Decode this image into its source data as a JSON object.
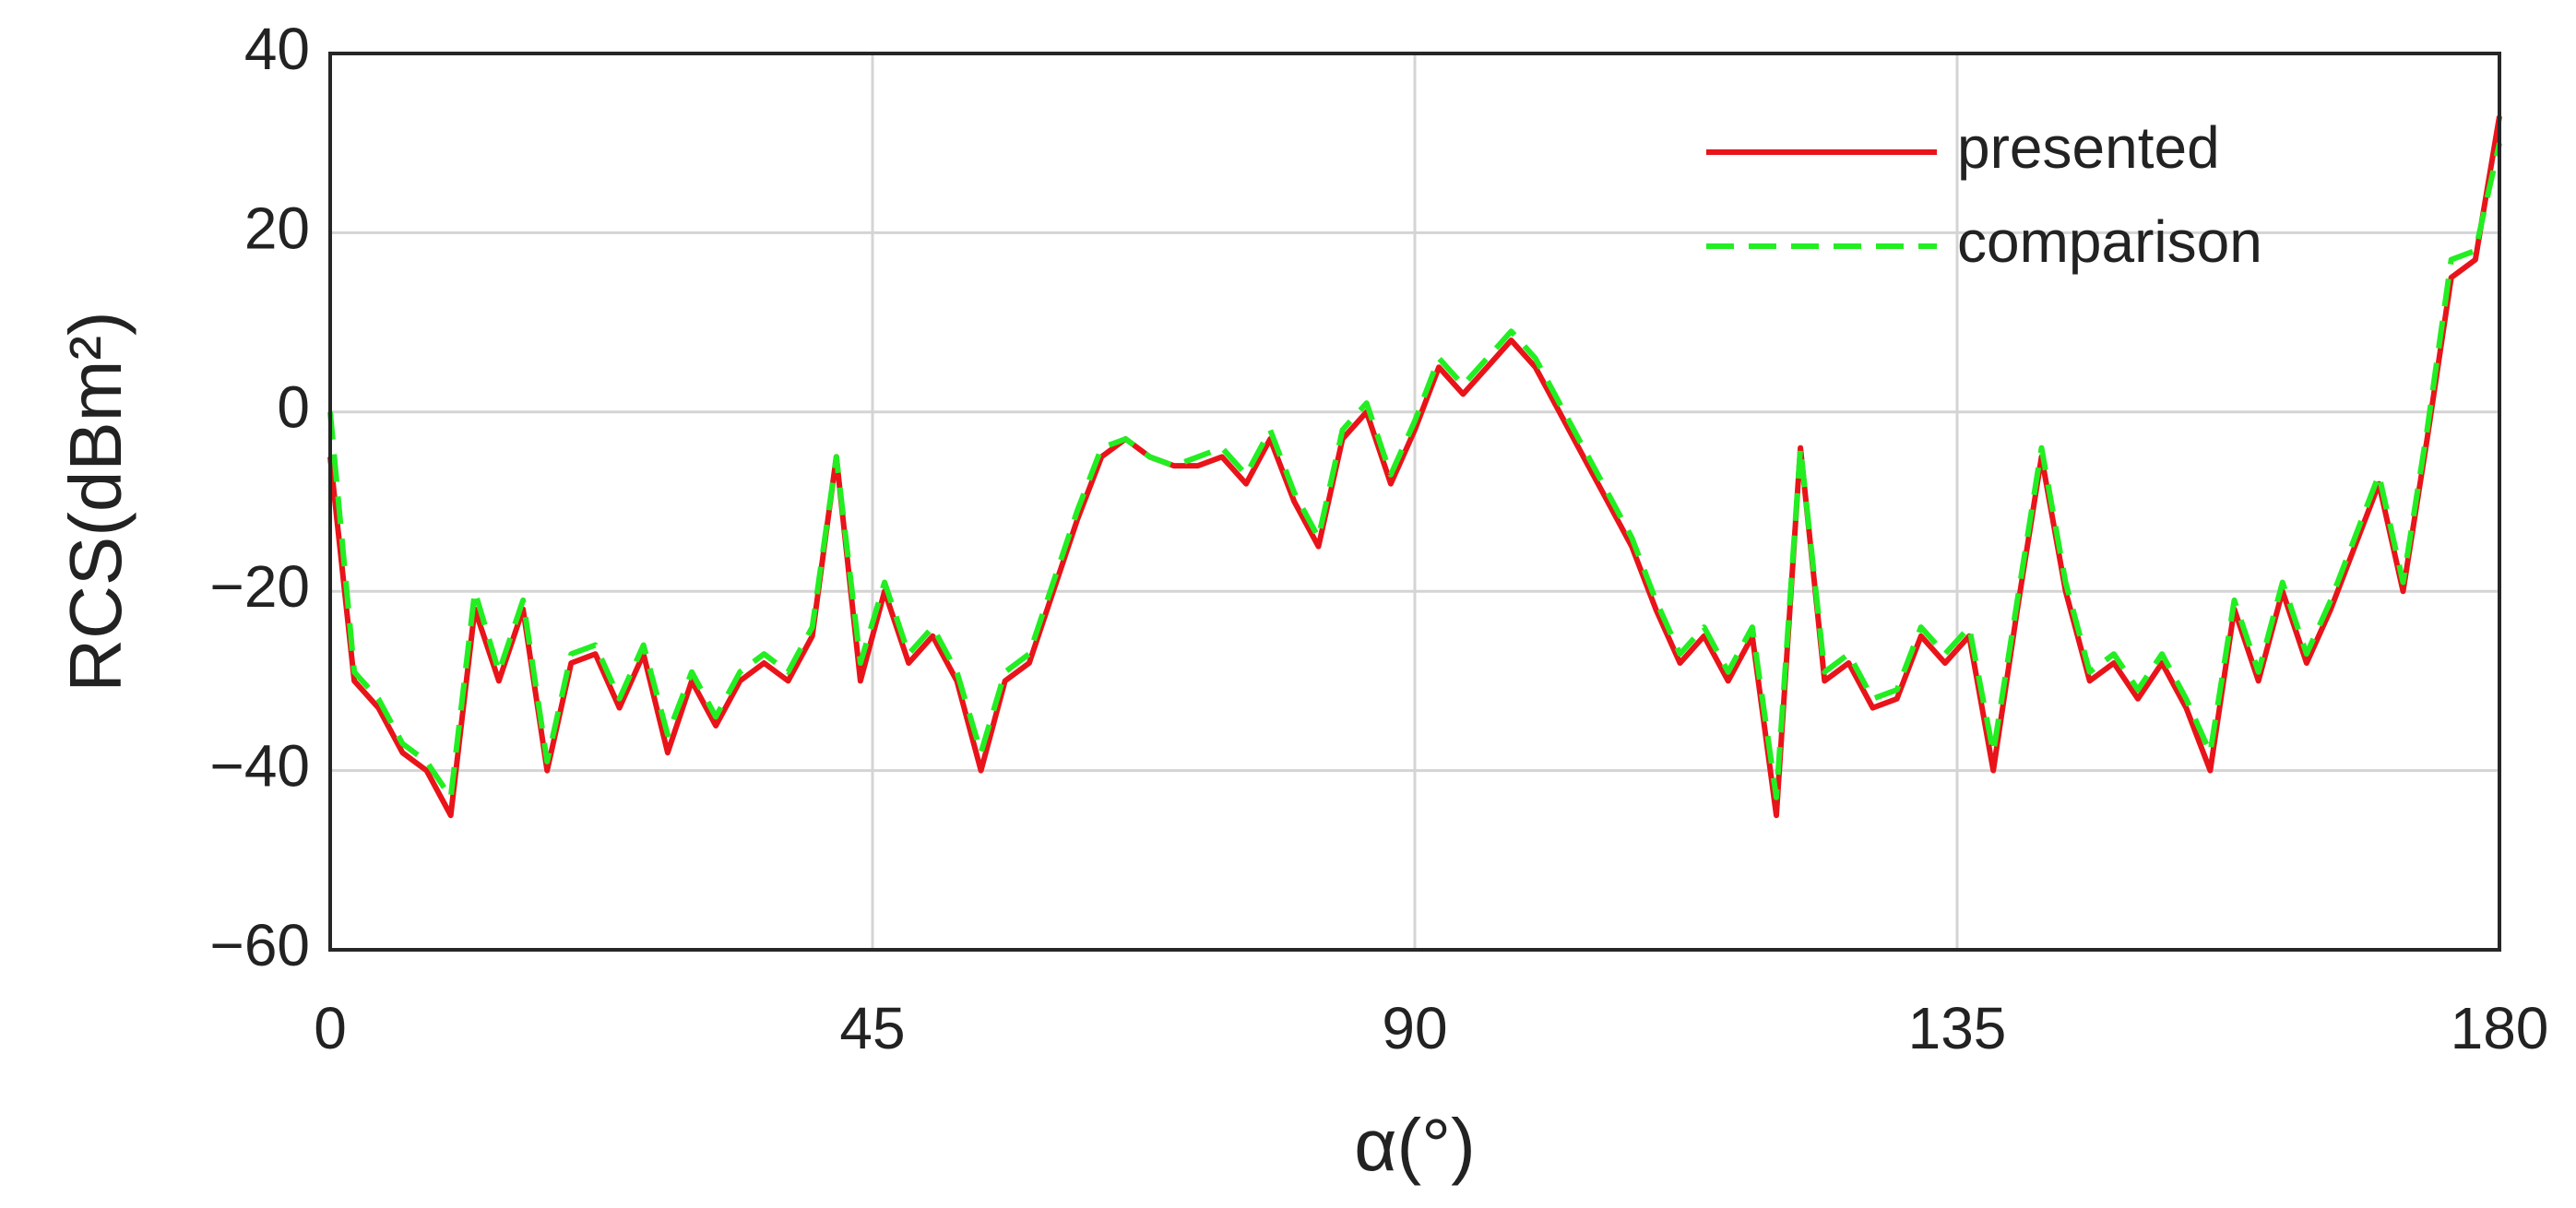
{
  "chart_data": {
    "type": "line",
    "xlabel": "α(°)",
    "ylabel": "RCS(dBm²)",
    "xlim": [
      0,
      180
    ],
    "ylim": [
      -60,
      40
    ],
    "xticks": [
      0,
      45,
      90,
      135,
      180
    ],
    "yticks": [
      {
        "value": -60,
        "label": "−60"
      },
      {
        "value": -40,
        "label": "−40"
      },
      {
        "value": -20,
        "label": "−20"
      },
      0,
      20,
      40
    ],
    "grid": true,
    "legend": "upper right",
    "x": [
      0,
      2,
      4,
      6,
      8,
      10,
      12,
      14,
      16,
      18,
      20,
      22,
      24,
      26,
      28,
      30,
      32,
      34,
      36,
      38,
      40,
      42,
      44,
      46,
      48,
      50,
      52,
      54,
      56,
      58,
      60,
      62,
      64,
      66,
      68,
      70,
      72,
      74,
      76,
      78,
      80,
      82,
      84,
      86,
      88,
      90,
      92,
      94,
      96,
      98,
      100,
      102,
      104,
      106,
      108,
      110,
      112,
      114,
      116,
      118,
      120,
      122,
      124,
      126,
      128,
      130,
      132,
      134,
      136,
      138,
      140,
      142,
      144,
      146,
      148,
      150,
      152,
      154,
      156,
      158,
      160,
      162,
      164,
      166,
      168,
      170,
      172,
      174,
      176,
      178,
      180
    ],
    "series": [
      {
        "name": "presented",
        "color": "#e8141a",
        "dash": "solid",
        "values": [
          -5,
          -30,
          -33,
          -38,
          -40,
          -45,
          -22,
          -30,
          -22,
          -40,
          -28,
          -27,
          -33,
          -27,
          -38,
          -30,
          -35,
          -30,
          -28,
          -30,
          -25,
          -5,
          -30,
          -20,
          -28,
          -25,
          -30,
          -40,
          -30,
          -28,
          -20,
          -12,
          -5,
          -3,
          -5,
          -6,
          -6,
          -5,
          -8,
          -3,
          -10,
          -15,
          -3,
          0,
          -8,
          -2,
          5,
          2,
          5,
          8,
          5,
          0,
          -5,
          -10,
          -15,
          -22,
          -28,
          -25,
          -30,
          -25,
          -45,
          -4,
          -30,
          -28,
          -33,
          -32,
          -25,
          -28,
          -25,
          -40,
          -22,
          -5,
          -20,
          -30,
          -28,
          -32,
          -28,
          -33,
          -40,
          -22,
          -30,
          -20,
          -28,
          -22,
          -15,
          -8,
          -20,
          -3,
          15,
          17,
          33
        ]
      },
      {
        "name": "comparison",
        "color": "#22ee22",
        "dash": "dashed",
        "values": [
          0,
          -29,
          -32,
          -37,
          -39,
          -43,
          -20,
          -29,
          -21,
          -39,
          -27,
          -26,
          -32,
          -26,
          -36,
          -29,
          -34,
          -29,
          -27,
          -29,
          -24,
          -5,
          -28,
          -19,
          -27,
          -24,
          -29,
          -38,
          -29,
          -27,
          -19,
          -11,
          -4,
          -3,
          -5,
          -6,
          -5,
          -4,
          -7,
          -2,
          -9,
          -14,
          -2,
          1,
          -7,
          -1,
          6,
          3,
          6,
          9,
          6,
          1,
          -4,
          -9,
          -14,
          -21,
          -27,
          -24,
          -29,
          -24,
          -43,
          -4,
          -29,
          -27,
          -32,
          -31,
          -24,
          -27,
          -24,
          -38,
          -21,
          -4,
          -19,
          -29,
          -27,
          -31,
          -27,
          -32,
          -38,
          -21,
          -29,
          -19,
          -27,
          -21,
          -14,
          -7,
          -19,
          -2,
          17,
          18,
          30
        ]
      }
    ]
  }
}
